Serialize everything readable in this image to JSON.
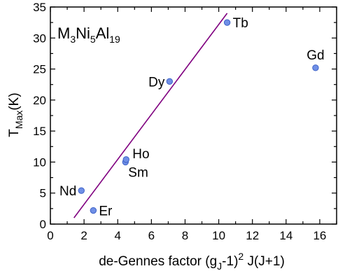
{
  "chart_data": {
    "type": "scatter",
    "title": "",
    "annotation": {
      "parts": [
        {
          "text": "M",
          "sub": false
        },
        {
          "text": "3",
          "sub": true
        },
        {
          "text": "Ni",
          "sub": false
        },
        {
          "text": "5",
          "sub": true
        },
        {
          "text": "Al",
          "sub": false
        },
        {
          "text": "19",
          "sub": true
        }
      ]
    },
    "xlabel": {
      "parts": [
        {
          "text": "de-Gennes factor (g",
          "style": "normal"
        },
        {
          "text": "J",
          "style": "sub"
        },
        {
          "text": "-1)",
          "style": "normal"
        },
        {
          "text": "2",
          "style": "sup"
        },
        {
          "text": " J(J+1)",
          "style": "normal"
        }
      ]
    },
    "ylabel": {
      "parts": [
        {
          "text": "T",
          "style": "normal"
        },
        {
          "text": "Max",
          "style": "sub"
        },
        {
          "text": "(K)",
          "style": "normal"
        }
      ]
    },
    "xlim": [
      0,
      17
    ],
    "ylim": [
      0,
      35
    ],
    "x_ticks": [
      0,
      2,
      4,
      6,
      8,
      10,
      12,
      14,
      16
    ],
    "y_ticks": [
      0,
      5,
      10,
      15,
      20,
      25,
      30,
      35
    ],
    "grid": false,
    "legend": "none",
    "marker_color": "#6f8fe6",
    "marker_edge_color": "#3f63c8",
    "fit_line_color": "#800080",
    "points": [
      {
        "label": "Nd",
        "x": 1.84,
        "y": 5.4,
        "label_pos": "left"
      },
      {
        "label": "Er",
        "x": 2.55,
        "y": 2.2,
        "label_pos": "right"
      },
      {
        "label": "Sm",
        "x": 4.46,
        "y": 10.0,
        "label_pos": "below-right"
      },
      {
        "label": "Ho",
        "x": 4.5,
        "y": 10.4,
        "label_pos": "above-right"
      },
      {
        "label": "Dy",
        "x": 7.08,
        "y": 23.0,
        "label_pos": "left"
      },
      {
        "label": "Tb",
        "x": 10.5,
        "y": 32.5,
        "label_pos": "right"
      },
      {
        "label": "Gd",
        "x": 15.75,
        "y": 25.2,
        "label_pos": "above"
      }
    ],
    "fit_line": {
      "x": [
        1.4,
        10.5
      ],
      "y": [
        1.0,
        34.0
      ]
    }
  }
}
